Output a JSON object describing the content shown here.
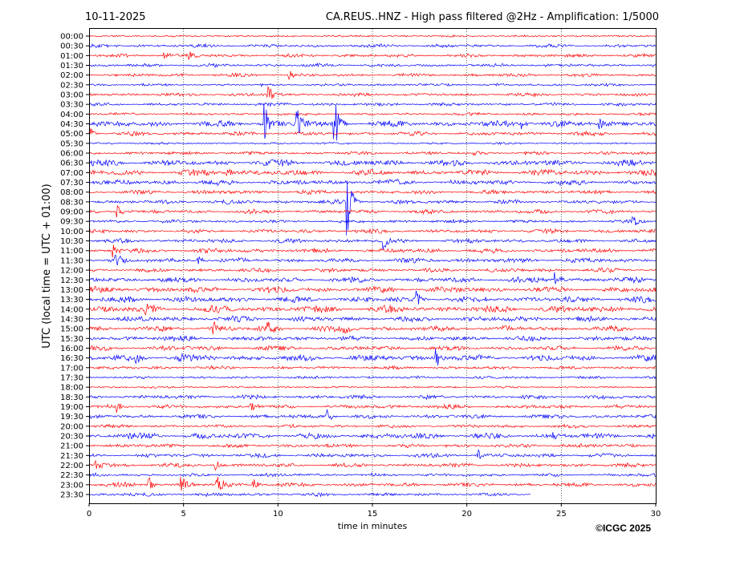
{
  "header": {
    "date": "10-11-2025",
    "title": "CA.REUS..HNZ - High pass filtered @2Hz - Amplification: 1/5000"
  },
  "footer": {
    "copyright": "©ICGC 2025"
  },
  "chart_data": {
    "type": "line",
    "subtype": "helicorder",
    "xlabel": "time in minutes",
    "ylabel": "UTC (local time = UTC + 01:00)",
    "xlim": [
      0,
      30
    ],
    "xticks": [
      "0",
      "5",
      "10",
      "15",
      "20",
      "25",
      "30"
    ],
    "grid": "vertical dotted",
    "colors": [
      "#ff0000",
      "#0000ff"
    ],
    "rows": [
      "00:00",
      "00:30",
      "01:00",
      "01:30",
      "02:00",
      "02:30",
      "03:00",
      "03:30",
      "04:00",
      "04:30",
      "05:00",
      "05:30",
      "06:00",
      "06:30",
      "07:00",
      "07:30",
      "08:00",
      "08:30",
      "09:00",
      "09:30",
      "10:00",
      "10:30",
      "11:00",
      "11:30",
      "12:00",
      "12:30",
      "13:00",
      "13:30",
      "14:00",
      "14:30",
      "15:00",
      "15:30",
      "16:00",
      "16:30",
      "17:00",
      "17:30",
      "18:00",
      "18:30",
      "19:00",
      "19:30",
      "20:00",
      "20:30",
      "21:00",
      "21:30",
      "22:00",
      "22:30",
      "23:00",
      "23:30"
    ],
    "noise_level": [
      1,
      2,
      2,
      2,
      2,
      1.5,
      2,
      2,
      1.5,
      4,
      2.5,
      1,
      2,
      4,
      4,
      3.5,
      2.5,
      2.5,
      2.5,
      2,
      2.5,
      2.5,
      3,
      3,
      2.5,
      3.5,
      4,
      4,
      4.5,
      3.5,
      3.5,
      3,
      3,
      4,
      2,
      1.5,
      1,
      2.5,
      2.5,
      2.5,
      2,
      4,
      2.5,
      2.5,
      2.5,
      2,
      2.5,
      2
    ],
    "last_row_end_minute": 23.4,
    "events": [
      {
        "row": "01:00",
        "minute": 4.0,
        "amplitude": 6
      },
      {
        "row": "01:00",
        "minute": 5.3,
        "amplitude": 5
      },
      {
        "row": "02:00",
        "minute": 10.6,
        "amplitude": 5
      },
      {
        "row": "03:00",
        "minute": 9.5,
        "amplitude": 14
      },
      {
        "row": "04:30",
        "minute": 9.3,
        "amplitude": 30
      },
      {
        "row": "04:30",
        "minute": 11.0,
        "amplitude": 25
      },
      {
        "row": "04:30",
        "minute": 13.0,
        "amplitude": 35
      },
      {
        "row": "04:30",
        "minute": 22.9,
        "amplitude": 8
      },
      {
        "row": "04:30",
        "minute": 27.0,
        "amplitude": 8
      },
      {
        "row": "05:00",
        "minute": 0.1,
        "amplitude": 8
      },
      {
        "row": "06:00",
        "minute": 20.4,
        "amplitude": 7
      },
      {
        "row": "07:00",
        "minute": 7.3,
        "amplitude": 7
      },
      {
        "row": "08:30",
        "minute": 13.7,
        "amplitude": 40
      },
      {
        "row": "09:00",
        "minute": 1.5,
        "amplitude": 9
      },
      {
        "row": "09:30",
        "minute": 28.8,
        "amplitude": 6
      },
      {
        "row": "10:30",
        "minute": 15.6,
        "amplitude": 10
      },
      {
        "row": "11:00",
        "minute": 1.3,
        "amplitude": 8
      },
      {
        "row": "11:30",
        "minute": 1.4,
        "amplitude": 11
      },
      {
        "row": "11:30",
        "minute": 5.8,
        "amplitude": 6
      },
      {
        "row": "12:30",
        "minute": 24.7,
        "amplitude": 9
      },
      {
        "row": "13:30",
        "minute": 17.3,
        "amplitude": 11
      },
      {
        "row": "14:00",
        "minute": 3.0,
        "amplitude": 8
      },
      {
        "row": "15:00",
        "minute": 6.6,
        "amplitude": 9
      },
      {
        "row": "15:00",
        "minute": 9.5,
        "amplitude": 9
      },
      {
        "row": "15:00",
        "minute": 13.5,
        "amplitude": 8
      },
      {
        "row": "16:30",
        "minute": 2.5,
        "amplitude": 7
      },
      {
        "row": "16:30",
        "minute": 4.8,
        "amplitude": 8
      },
      {
        "row": "16:30",
        "minute": 18.4,
        "amplitude": 13
      },
      {
        "row": "19:00",
        "minute": 8.6,
        "amplitude": 8
      },
      {
        "row": "19:00",
        "minute": 1.5,
        "amplitude": 7
      },
      {
        "row": "19:30",
        "minute": 12.6,
        "amplitude": 10
      },
      {
        "row": "20:30",
        "minute": 24.6,
        "amplitude": 8
      },
      {
        "row": "21:30",
        "minute": 20.6,
        "amplitude": 7
      },
      {
        "row": "22:00",
        "minute": 0.3,
        "amplitude": 9
      },
      {
        "row": "22:00",
        "minute": 6.7,
        "amplitude": 7
      },
      {
        "row": "23:00",
        "minute": 3.2,
        "amplitude": 9
      },
      {
        "row": "23:00",
        "minute": 4.9,
        "amplitude": 11
      },
      {
        "row": "23:00",
        "minute": 6.8,
        "amplitude": 14
      },
      {
        "row": "23:00",
        "minute": 8.7,
        "amplitude": 9
      }
    ]
  }
}
